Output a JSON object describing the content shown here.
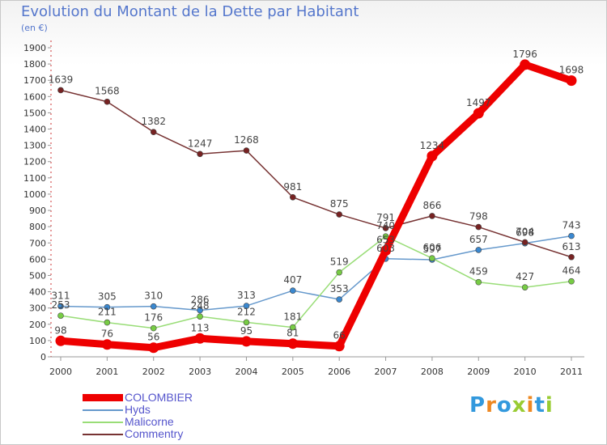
{
  "title": "Evolution du Montant de la Dette par Habitant",
  "subtitle": "(en €)",
  "brand": {
    "letters": [
      {
        "ch": "P",
        "color": "#3399dd"
      },
      {
        "ch": "r",
        "color": "#ee8822"
      },
      {
        "ch": "o",
        "color": "#3399dd"
      },
      {
        "ch": "x",
        "color": "#99cc33"
      },
      {
        "ch": "i",
        "color": "#ee8822"
      },
      {
        "ch": "t",
        "color": "#3399dd"
      },
      {
        "ch": "i",
        "color": "#99cc33"
      }
    ]
  },
  "chart_data": {
    "type": "line",
    "title": "Evolution du Montant de la Dette par Habitant",
    "subtitle": "(en €)",
    "xlabel": "",
    "ylabel": "",
    "ylim": [
      0,
      1900
    ],
    "ytick_step": 100,
    "grid": false,
    "legend_position": "bottom-left",
    "categories": [
      "2000",
      "2001",
      "2002",
      "2003",
      "2004",
      "2005",
      "2006",
      "2007",
      "2008",
      "2009",
      "2010",
      "2011"
    ],
    "series": [
      {
        "name": "COLOMBIER",
        "color": "#ee0000",
        "marker_color": "#ee0000",
        "width": "thick",
        "values": [
          98,
          76,
          56,
          113,
          95,
          81,
          66,
          653,
          1234,
          1497,
          1796,
          1698
        ],
        "labels": [
          "98",
          "76",
          "56",
          "113",
          "95",
          "81",
          "66",
          "653",
          "1234",
          "1497",
          "1796",
          "1698"
        ]
      },
      {
        "name": "Hyds",
        "color": "#6699cc",
        "marker_color": "#3a88d0",
        "width": "thin",
        "values": [
          311,
          305,
          310,
          286,
          313,
          407,
          353,
          603,
          597,
          657,
          698,
          743
        ],
        "labels": [
          "311",
          "305",
          "310",
          "286",
          "313",
          "407",
          "353",
          "603",
          "597",
          "657",
          "698",
          "743"
        ]
      },
      {
        "name": "Malicorne",
        "color": "#99dd77",
        "marker_color": "#77cc44",
        "width": "thin",
        "values": [
          253,
          211,
          176,
          248,
          212,
          181,
          519,
          740,
          606,
          459,
          427,
          464
        ],
        "labels": [
          "253",
          "211",
          "176",
          "248",
          "212",
          "181",
          "519",
          "740",
          "606",
          "459",
          "427",
          "464"
        ]
      },
      {
        "name": "Commentry",
        "color": "#773333",
        "marker_color": "#772222",
        "width": "thin",
        "values": [
          1639,
          1568,
          1382,
          1247,
          1268,
          981,
          875,
          791,
          866,
          798,
          704,
          613
        ],
        "labels": [
          "1639",
          "1568",
          "1382",
          "1247",
          "1268",
          "981",
          "875",
          "791",
          "866",
          "798",
          "704",
          "613"
        ]
      }
    ]
  }
}
